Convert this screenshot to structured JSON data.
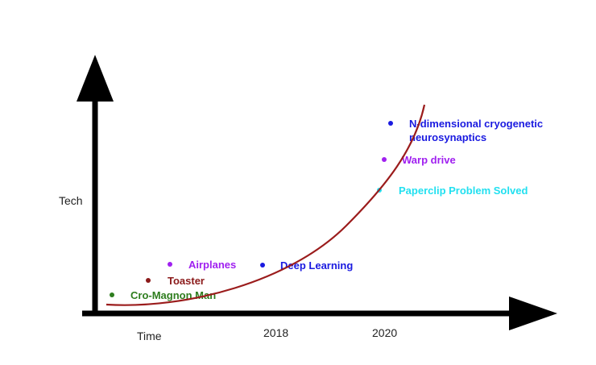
{
  "axes": {
    "y_label": "Tech",
    "x_label": "Time",
    "ticks": [
      "2018",
      "2020"
    ]
  },
  "milestones": [
    {
      "label": "Cro-Magnon Man",
      "color": "#2e7d1e"
    },
    {
      "label": "Toaster",
      "color": "#8b1a1a"
    },
    {
      "label": "Airplanes",
      "color": "#a020f0"
    },
    {
      "label": "Deep Learning",
      "color": "#1a1ae0"
    },
    {
      "label": "Paperclip Problem Solved",
      "color": "#22e0f0"
    },
    {
      "label": "Warp drive",
      "color": "#a020f0"
    },
    {
      "label_line1": "N-dimensional cryogenetic",
      "label_line2": "neurosynaptics",
      "color": "#1a1ae0"
    }
  ],
  "colors": {
    "axis": "#000000",
    "curve": "#9b1c1c"
  }
}
